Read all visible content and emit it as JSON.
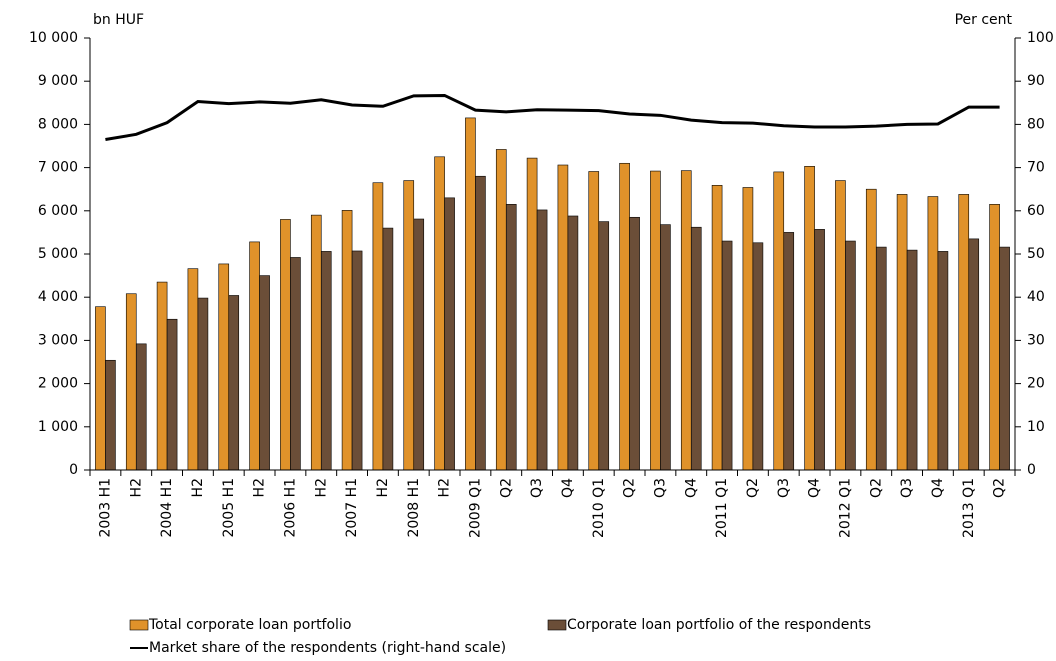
{
  "chart_data": {
    "type": "bar",
    "y_label": "bn HUF",
    "y2_label": "Per cent",
    "categories": [
      "2003 H1",
      "H2",
      "2004 H1",
      "H2",
      "2005 H1",
      "H2",
      "2006 H1",
      "H2",
      "2007 H1",
      "H2",
      "2008 H1",
      "H2",
      "2009 Q1",
      "Q2",
      "Q3",
      "Q4",
      "2010 Q1",
      "Q2",
      "Q3",
      "Q4",
      "2011 Q1",
      "Q2",
      "Q3",
      "Q4",
      "2012 Q1",
      "Q2",
      "Q3",
      "Q4",
      "2013 Q1",
      "Q2"
    ],
    "series": [
      {
        "name": "Total corporate loan portfolio",
        "color": "#e0922a",
        "values": [
          3780,
          4080,
          4350,
          4660,
          4770,
          5280,
          5800,
          5900,
          6010,
          6650,
          6700,
          7250,
          8150,
          7420,
          7220,
          7060,
          6910,
          7100,
          6920,
          6930,
          6590,
          6540,
          6900,
          7030,
          6700,
          6500,
          6380,
          6330,
          6380,
          6150
        ]
      },
      {
        "name": "Corporate loan portfolio of the respondents",
        "color": "#6b4e38",
        "values": [
          2540,
          2920,
          3490,
          3980,
          4040,
          4500,
          4920,
          5060,
          5070,
          5600,
          5810,
          6300,
          6800,
          6150,
          6020,
          5880,
          5750,
          5850,
          5680,
          5620,
          5300,
          5260,
          5500,
          5570,
          5300,
          5160,
          5090,
          5060,
          5350,
          5160
        ]
      },
      {
        "name": "Market share of the respondents (right-hand scale)",
        "color": "#000000",
        "type": "line",
        "axis": "y2",
        "values": [
          76.5,
          77.7,
          80.4,
          85.3,
          84.8,
          85.2,
          84.9,
          85.7,
          84.5,
          84.2,
          86.6,
          86.7,
          83.3,
          82.9,
          83.4,
          83.3,
          83.2,
          82.4,
          82.1,
          81.0,
          80.4,
          80.3,
          79.7,
          79.4,
          79.4,
          79.6,
          80.0,
          80.1,
          84.0,
          84.0
        ]
      }
    ],
    "ylim": [
      0,
      10000
    ],
    "yticks": [
      0,
      {
        "value": 1000,
        "label": "1 000"
      },
      {
        "value": 2000,
        "label": "2 000"
      },
      {
        "value": 3000,
        "label": "3 000"
      },
      {
        "value": 4000,
        "label": "4 000"
      },
      {
        "value": 5000,
        "label": "5 000"
      },
      {
        "value": 6000,
        "label": "6 000"
      },
      {
        "value": 7000,
        "label": "7 000"
      },
      {
        "value": 8000,
        "label": "8 000"
      },
      {
        "value": 9000,
        "label": "9 000"
      },
      {
        "value": 10000,
        "label": "10 000"
      }
    ],
    "y2lim": [
      0,
      100
    ],
    "y2ticks": [
      0,
      10,
      20,
      30,
      40,
      50,
      60,
      70,
      80,
      90,
      100
    ],
    "grid": false
  }
}
